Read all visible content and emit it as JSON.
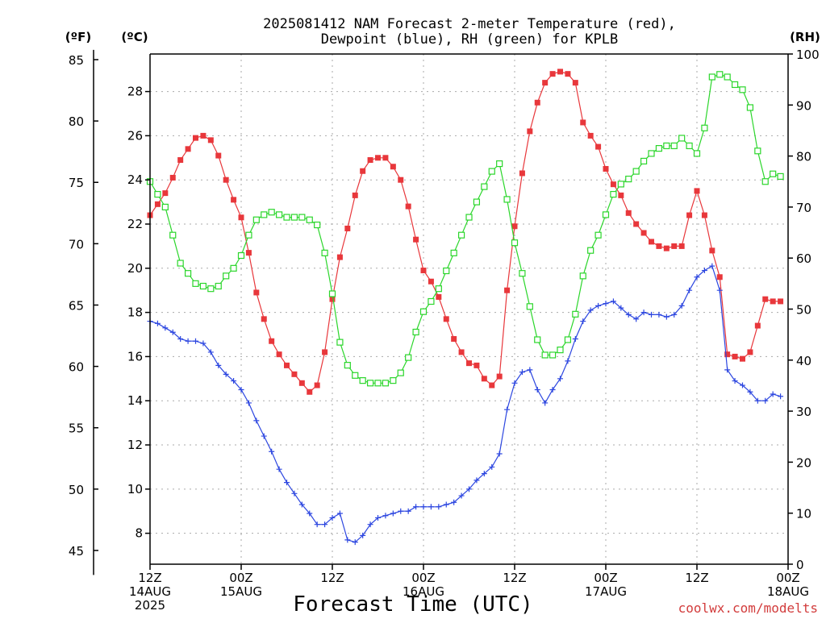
{
  "chart_data": {
    "type": "line",
    "title_lines": [
      "2025081412 NAM Forecast 2-meter Temperature (red),",
      "Dewpoint (blue), RH (green) for KPLB"
    ],
    "xlabel": "Forecast Time (UTC)",
    "credit": "coolwx.com/modelts",
    "unit_labels": {
      "f": "(ºF)",
      "c": "(ºC)",
      "rh": "(RH)"
    },
    "x_ticks": [
      {
        "h": 0,
        "lines": [
          "12Z",
          "14AUG",
          "2025"
        ]
      },
      {
        "h": 12,
        "lines": [
          "00Z",
          "15AUG"
        ]
      },
      {
        "h": 24,
        "lines": [
          "12Z"
        ]
      },
      {
        "h": 36,
        "lines": [
          "00Z",
          "16AUG"
        ]
      },
      {
        "h": 48,
        "lines": [
          "12Z"
        ]
      },
      {
        "h": 60,
        "lines": [
          "00Z",
          "17AUG"
        ]
      },
      {
        "h": 72,
        "lines": [
          "12Z"
        ]
      },
      {
        "h": 84,
        "lines": [
          "00Z",
          "18AUG"
        ]
      }
    ],
    "x_range_hours": [
      0,
      84
    ],
    "x_step_hours": 1,
    "y_left_c": {
      "label": "(ºC)",
      "range": [
        6.6,
        29.7
      ],
      "ticks": [
        8,
        10,
        12,
        14,
        16,
        18,
        20,
        22,
        24,
        26,
        28
      ]
    },
    "y_left_f": {
      "label": "(ºF)",
      "ticks": [
        45,
        50,
        55,
        60,
        65,
        70,
        75,
        80,
        85
      ]
    },
    "y_right_rh": {
      "label": "(RH)",
      "range": [
        0,
        100
      ],
      "ticks": [
        0,
        10,
        20,
        30,
        40,
        50,
        60,
        70,
        80,
        90,
        100
      ]
    },
    "grid": true,
    "series": [
      {
        "name": "Temperature",
        "color": "#e8373b",
        "marker": "filled-square",
        "axis": "c",
        "values": [
          22.4,
          22.9,
          23.4,
          24.1,
          24.9,
          25.4,
          25.9,
          26.0,
          25.8,
          25.1,
          24.0,
          23.1,
          22.3,
          20.7,
          18.9,
          17.7,
          16.7,
          16.1,
          15.6,
          15.2,
          14.8,
          14.4,
          14.7,
          16.2,
          18.6,
          20.5,
          21.8,
          23.3,
          24.4,
          24.9,
          25.0,
          25.0,
          24.6,
          24.0,
          22.8,
          21.3,
          19.9,
          19.4,
          18.7,
          17.7,
          16.8,
          16.2,
          15.7,
          15.6,
          15.0,
          14.7,
          15.1,
          19.0,
          21.9,
          24.3,
          26.2,
          27.5,
          28.4,
          28.8,
          28.9,
          28.8,
          28.4,
          26.6,
          26.0,
          25.5,
          24.5,
          23.8,
          23.3,
          22.5,
          22.0,
          21.6,
          21.2,
          21.0,
          20.9,
          21.0,
          21.0,
          22.4,
          23.5,
          22.4,
          20.8,
          19.6,
          16.1,
          16.0,
          15.9,
          16.2,
          17.4,
          18.6,
          18.5,
          18.5
        ]
      },
      {
        "name": "Dewpoint",
        "color": "#2c46e0",
        "marker": "plus",
        "axis": "c",
        "values": [
          17.6,
          17.5,
          17.3,
          17.1,
          16.8,
          16.7,
          16.7,
          16.6,
          16.2,
          15.6,
          15.2,
          14.9,
          14.5,
          13.9,
          13.1,
          12.4,
          11.7,
          10.9,
          10.3,
          9.8,
          9.3,
          8.9,
          8.4,
          8.4,
          8.7,
          8.9,
          7.7,
          7.6,
          7.9,
          8.4,
          8.7,
          8.8,
          8.9,
          9.0,
          9.0,
          9.2,
          9.2,
          9.2,
          9.2,
          9.3,
          9.4,
          9.7,
          10.0,
          10.4,
          10.7,
          11.0,
          11.6,
          13.6,
          14.8,
          15.3,
          15.4,
          14.5,
          13.9,
          14.5,
          15.0,
          15.8,
          16.8,
          17.6,
          18.1,
          18.3,
          18.4,
          18.5,
          18.2,
          17.9,
          17.7,
          18.0,
          17.9,
          17.9,
          17.8,
          17.9,
          18.3,
          19.0,
          19.6,
          19.9,
          20.1,
          19.0,
          15.4,
          14.9,
          14.7,
          14.4,
          14.0,
          14.0,
          14.3,
          14.2
        ]
      },
      {
        "name": "RH",
        "color": "#2bd62b",
        "marker": "open-square",
        "axis": "rh",
        "values": [
          75,
          72.5,
          70,
          64.5,
          59,
          57,
          55,
          54.5,
          54,
          54.5,
          56.5,
          58,
          60.5,
          64.5,
          67.5,
          68.5,
          69,
          68.5,
          68,
          68,
          68,
          67.5,
          66.5,
          61,
          53,
          43.5,
          39,
          37,
          36,
          35.5,
          35.5,
          35.5,
          36,
          37.5,
          40.5,
          45.5,
          49.5,
          51.5,
          54,
          57.5,
          61,
          64.5,
          68,
          71,
          74,
          77,
          78.5,
          71.5,
          63,
          57,
          50.5,
          44,
          41,
          41,
          42,
          44,
          49,
          56.5,
          61.5,
          64.5,
          68.5,
          72.5,
          74.5,
          75.5,
          77,
          79,
          80.5,
          81.5,
          82,
          82,
          83.5,
          82,
          80.5,
          85.5,
          95.5,
          96,
          95.5,
          94,
          93,
          89.5,
          81,
          75,
          76.5,
          76
        ]
      }
    ]
  }
}
